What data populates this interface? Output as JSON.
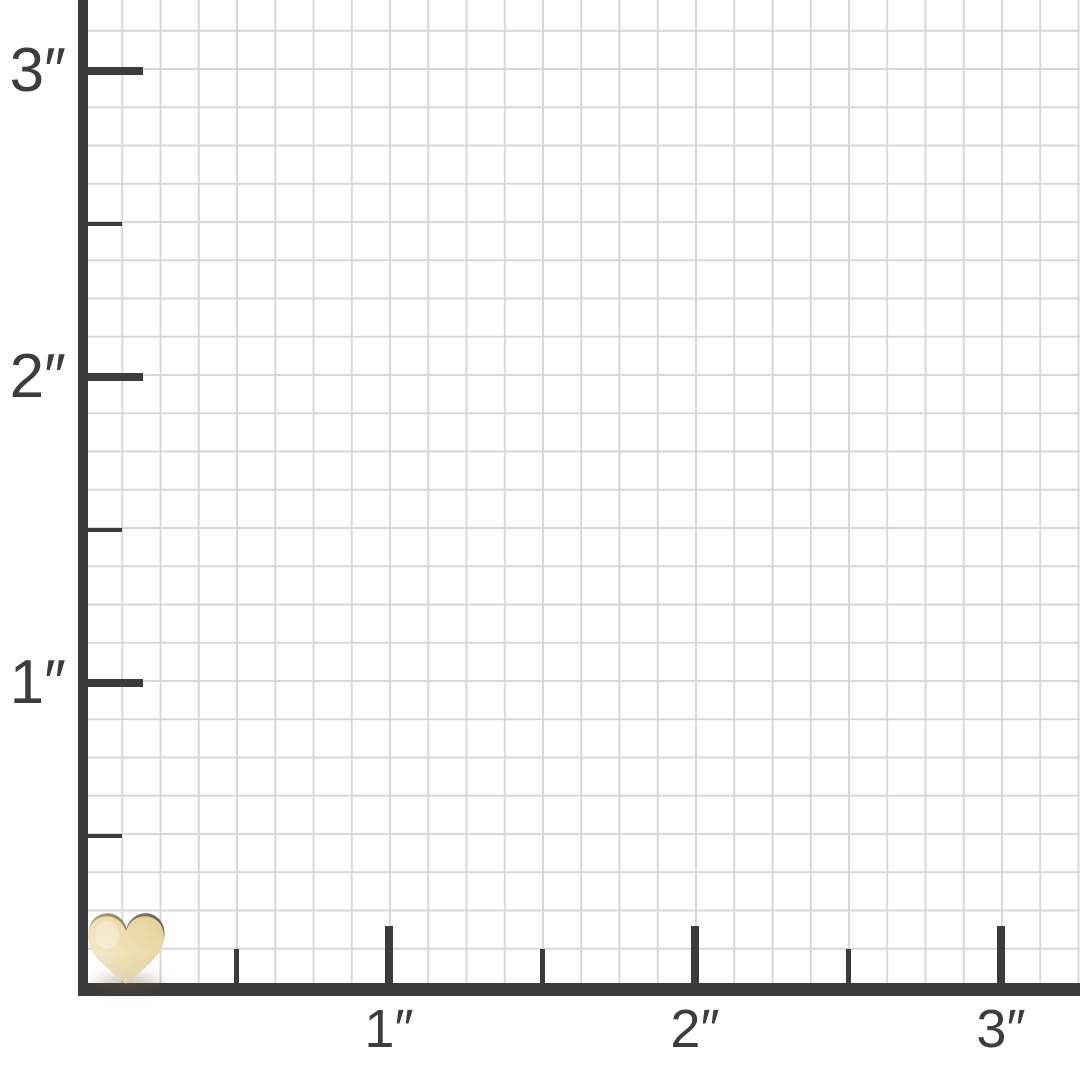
{
  "ruler_chart": {
    "unit": "inches",
    "unit_mark": "″",
    "grid_squares_per_inch": 8,
    "y_axis": {
      "major_ticks": [
        {
          "value": 3,
          "label": "3″"
        },
        {
          "value": 2,
          "label": "2″"
        },
        {
          "value": 1,
          "label": "1″"
        }
      ],
      "minor_ticks": [
        2.5,
        1.5,
        0.5
      ],
      "range_inches": [
        0,
        3.25
      ]
    },
    "x_axis": {
      "major_ticks": [
        {
          "value": 1,
          "label": "1″"
        },
        {
          "value": 2,
          "label": "2″"
        },
        {
          "value": 3,
          "label": "3″"
        }
      ],
      "minor_ticks": [
        0.5,
        1.5,
        2.5
      ],
      "range_inches": [
        0,
        3.26
      ]
    },
    "colors": {
      "axis": "#3b3b3b",
      "grid": "#d8d8d8",
      "label": "#3d3d3d",
      "background": "#ffffff"
    }
  },
  "object": {
    "name": "gold heart charm",
    "position": "bottom-left corner at origin",
    "approx_width_inches": 0.25,
    "approx_height_inches": 0.23,
    "colors": {
      "face_light": "#f8f2de",
      "face_mid": "#efe0b4",
      "face_deep": "#e4cf9b",
      "edge_light": "#b8a678",
      "edge_dark": "#6e6143",
      "shadow": "rgba(95,85,55,0.38)"
    }
  }
}
